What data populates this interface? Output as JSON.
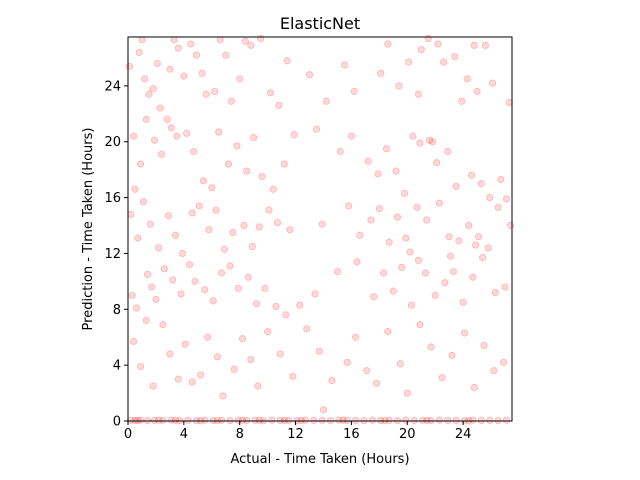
{
  "chart_data": {
    "type": "scatter",
    "title": "ElasticNet",
    "xlabel": "Actual - Time Taken (Hours)",
    "ylabel": "Prediction - Time Taken (Hours)",
    "xlim": [
      0,
      27.5
    ],
    "ylim": [
      0,
      27.5
    ],
    "xticks": [
      0,
      4,
      8,
      12,
      16,
      20,
      24
    ],
    "yticks": [
      0,
      4,
      8,
      12,
      16,
      20,
      24
    ],
    "grid": false,
    "legend": "none",
    "marker_color": "#ff0000",
    "marker_alpha": 0.15,
    "series": [
      {
        "points": [
          [
            0.1,
            25.4
          ],
          [
            0.5,
            16.6
          ],
          [
            0.8,
            26.4
          ],
          [
            1.0,
            27.3
          ],
          [
            1.2,
            24.5
          ],
          [
            1.5,
            23.4
          ],
          [
            1.8,
            23.8
          ],
          [
            2.1,
            25.6
          ],
          [
            2.3,
            22.4
          ],
          [
            2.8,
            21.6
          ],
          [
            3.0,
            25.2
          ],
          [
            3.3,
            27.3
          ],
          [
            3.6,
            26.7
          ],
          [
            4.0,
            24.7
          ],
          [
            4.5,
            27.0
          ],
          [
            4.9,
            26.2
          ],
          [
            5.3,
            24.9
          ],
          [
            5.6,
            23.4
          ],
          [
            6.2,
            23.6
          ],
          [
            6.6,
            27.3
          ],
          [
            7.0,
            26.2
          ],
          [
            7.4,
            22.9
          ],
          [
            8.0,
            24.5
          ],
          [
            8.4,
            27.2
          ],
          [
            8.8,
            26.9
          ],
          [
            9.5,
            27.4
          ],
          [
            10.2,
            23.5
          ],
          [
            10.8,
            22.6
          ],
          [
            11.4,
            25.8
          ],
          [
            13.0,
            24.8
          ],
          [
            14.2,
            22.9
          ],
          [
            15.5,
            25.5
          ],
          [
            16.2,
            23.6
          ],
          [
            18.1,
            24.9
          ],
          [
            19.4,
            24.0
          ],
          [
            20.1,
            25.7
          ],
          [
            21.0,
            26.6
          ],
          [
            21.5,
            27.4
          ],
          [
            22.6,
            25.7
          ],
          [
            23.4,
            26.1
          ],
          [
            23.9,
            22.9
          ],
          [
            24.3,
            24.5
          ],
          [
            25.0,
            23.6
          ],
          [
            25.6,
            26.9
          ],
          [
            26.1,
            24.2
          ],
          [
            27.3,
            22.8
          ],
          [
            22.2,
            27.0
          ],
          [
            24.8,
            26.9
          ],
          [
            20.8,
            23.4
          ],
          [
            18.6,
            27.0
          ],
          [
            0.4,
            20.4
          ],
          [
            0.9,
            18.4
          ],
          [
            1.3,
            21.6
          ],
          [
            1.9,
            20.1
          ],
          [
            2.4,
            19.1
          ],
          [
            3.1,
            21.0
          ],
          [
            3.5,
            20.4
          ],
          [
            4.2,
            20.6
          ],
          [
            4.7,
            19.3
          ],
          [
            5.4,
            17.2
          ],
          [
            6.0,
            16.7
          ],
          [
            6.5,
            20.7
          ],
          [
            7.2,
            18.4
          ],
          [
            7.8,
            19.7
          ],
          [
            8.5,
            17.9
          ],
          [
            9.0,
            20.3
          ],
          [
            9.6,
            17.5
          ],
          [
            10.4,
            16.6
          ],
          [
            11.2,
            18.4
          ],
          [
            11.9,
            20.5
          ],
          [
            13.5,
            20.9
          ],
          [
            15.2,
            19.3
          ],
          [
            16.0,
            20.4
          ],
          [
            17.2,
            18.6
          ],
          [
            17.9,
            17.7
          ],
          [
            18.5,
            19.5
          ],
          [
            19.2,
            17.9
          ],
          [
            19.8,
            16.3
          ],
          [
            20.4,
            20.4
          ],
          [
            20.9,
            19.9
          ],
          [
            21.6,
            20.1
          ],
          [
            22.1,
            18.5
          ],
          [
            22.9,
            19.3
          ],
          [
            23.5,
            16.8
          ],
          [
            24.6,
            17.6
          ],
          [
            25.3,
            17.0
          ],
          [
            25.9,
            16.0
          ],
          [
            26.7,
            17.3
          ],
          [
            27.1,
            15.9
          ],
          [
            21.8,
            20.0
          ],
          [
            0.2,
            14.8
          ],
          [
            0.7,
            13.1
          ],
          [
            1.1,
            15.7
          ],
          [
            1.6,
            14.1
          ],
          [
            2.2,
            12.4
          ],
          [
            2.9,
            14.7
          ],
          [
            3.4,
            13.3
          ],
          [
            3.9,
            12.0
          ],
          [
            4.6,
            14.9
          ],
          [
            5.1,
            15.4
          ],
          [
            5.8,
            13.7
          ],
          [
            6.3,
            15.1
          ],
          [
            6.9,
            12.3
          ],
          [
            7.5,
            13.5
          ],
          [
            8.3,
            14.0
          ],
          [
            8.9,
            12.5
          ],
          [
            9.4,
            13.9
          ],
          [
            10.1,
            15.1
          ],
          [
            10.7,
            14.2
          ],
          [
            11.6,
            13.7
          ],
          [
            13.9,
            14.1
          ],
          [
            15.8,
            15.4
          ],
          [
            16.6,
            13.3
          ],
          [
            17.4,
            14.4
          ],
          [
            18.0,
            15.2
          ],
          [
            18.7,
            12.8
          ],
          [
            19.3,
            14.6
          ],
          [
            19.9,
            13.1
          ],
          [
            20.7,
            15.3
          ],
          [
            21.4,
            14.4
          ],
          [
            22.3,
            15.6
          ],
          [
            23.0,
            13.2
          ],
          [
            23.7,
            12.9
          ],
          [
            24.4,
            14.0
          ],
          [
            25.1,
            13.2
          ],
          [
            25.8,
            12.4
          ],
          [
            26.5,
            15.3
          ],
          [
            27.4,
            14.0
          ],
          [
            24.9,
            12.6
          ],
          [
            20.2,
            12.1
          ],
          [
            0.3,
            9.0
          ],
          [
            0.6,
            8.1
          ],
          [
            1.4,
            10.5
          ],
          [
            1.7,
            9.6
          ],
          [
            2.0,
            8.7
          ],
          [
            2.6,
            10.9
          ],
          [
            3.2,
            10.1
          ],
          [
            3.8,
            9.1
          ],
          [
            4.4,
            11.2
          ],
          [
            4.8,
            10.0
          ],
          [
            5.5,
            9.4
          ],
          [
            6.1,
            8.6
          ],
          [
            6.7,
            10.6
          ],
          [
            7.3,
            11.1
          ],
          [
            7.9,
            9.5
          ],
          [
            8.6,
            10.3
          ],
          [
            9.2,
            8.4
          ],
          [
            9.8,
            9.5
          ],
          [
            10.6,
            8.2
          ],
          [
            11.3,
            7.6
          ],
          [
            12.3,
            8.3
          ],
          [
            13.4,
            9.1
          ],
          [
            15.0,
            10.7
          ],
          [
            16.4,
            11.4
          ],
          [
            17.6,
            8.9
          ],
          [
            18.3,
            10.6
          ],
          [
            19.0,
            9.3
          ],
          [
            19.6,
            11.0
          ],
          [
            20.3,
            8.3
          ],
          [
            20.8,
            11.5
          ],
          [
            21.3,
            10.6
          ],
          [
            22.0,
            9.0
          ],
          [
            22.7,
            9.9
          ],
          [
            23.3,
            10.7
          ],
          [
            24.0,
            8.5
          ],
          [
            24.7,
            10.3
          ],
          [
            25.4,
            11.7
          ],
          [
            26.3,
            9.2
          ],
          [
            27.0,
            9.6
          ],
          [
            23.1,
            11.8
          ],
          [
            0.4,
            5.7
          ],
          [
            0.9,
            3.9
          ],
          [
            1.3,
            7.2
          ],
          [
            1.8,
            2.5
          ],
          [
            2.5,
            6.9
          ],
          [
            3.0,
            4.8
          ],
          [
            3.6,
            3.0
          ],
          [
            4.1,
            5.5
          ],
          [
            4.6,
            2.8
          ],
          [
            5.2,
            3.3
          ],
          [
            5.7,
            6.0
          ],
          [
            6.4,
            4.6
          ],
          [
            6.8,
            1.8
          ],
          [
            7.6,
            3.7
          ],
          [
            8.2,
            5.9
          ],
          [
            8.8,
            4.4
          ],
          [
            9.3,
            2.5
          ],
          [
            10.0,
            6.4
          ],
          [
            10.9,
            4.8
          ],
          [
            11.8,
            3.2
          ],
          [
            12.8,
            6.6
          ],
          [
            13.7,
            5.0
          ],
          [
            14.6,
            2.9
          ],
          [
            15.7,
            4.2
          ],
          [
            16.3,
            6.0
          ],
          [
            17.1,
            3.6
          ],
          [
            17.8,
            2.7
          ],
          [
            18.6,
            6.4
          ],
          [
            19.5,
            4.1
          ],
          [
            20.0,
            2.0
          ],
          [
            20.9,
            6.9
          ],
          [
            21.7,
            5.3
          ],
          [
            22.5,
            3.1
          ],
          [
            23.2,
            4.7
          ],
          [
            24.1,
            6.3
          ],
          [
            24.8,
            2.4
          ],
          [
            25.5,
            5.4
          ],
          [
            26.2,
            3.6
          ],
          [
            26.9,
            4.2
          ],
          [
            14.0,
            0.8
          ],
          [
            0.2,
            0.05
          ],
          [
            0.5,
            0.03
          ],
          [
            0.9,
            0.06
          ],
          [
            1.4,
            0.02
          ],
          [
            1.9,
            0.05
          ],
          [
            2.5,
            0.04
          ],
          [
            3.1,
            0.06
          ],
          [
            3.7,
            0.03
          ],
          [
            4.3,
            0.05
          ],
          [
            4.9,
            0.02
          ],
          [
            5.5,
            0.06
          ],
          [
            6.1,
            0.04
          ],
          [
            6.7,
            0.05
          ],
          [
            7.3,
            0.03
          ],
          [
            7.9,
            0.06
          ],
          [
            8.5,
            0.04
          ],
          [
            9.1,
            0.05
          ],
          [
            9.7,
            0.02
          ],
          [
            10.3,
            0.06
          ],
          [
            10.9,
            0.04
          ],
          [
            11.5,
            0.05
          ],
          [
            12.1,
            0.03
          ],
          [
            12.7,
            0.06
          ],
          [
            13.3,
            0.04
          ],
          [
            13.9,
            0.05
          ],
          [
            14.5,
            0.02
          ],
          [
            15.1,
            0.06
          ],
          [
            15.7,
            0.04
          ],
          [
            16.3,
            0.05
          ],
          [
            16.9,
            0.03
          ],
          [
            17.5,
            0.06
          ],
          [
            18.1,
            0.04
          ],
          [
            18.7,
            0.05
          ],
          [
            19.3,
            0.02
          ],
          [
            19.9,
            0.06
          ],
          [
            20.5,
            0.04
          ],
          [
            21.1,
            0.05
          ],
          [
            21.7,
            0.03
          ],
          [
            22.3,
            0.06
          ],
          [
            22.9,
            0.04
          ],
          [
            23.5,
            0.05
          ],
          [
            24.1,
            0.02
          ],
          [
            24.7,
            0.06
          ],
          [
            25.3,
            0.04
          ],
          [
            25.9,
            0.05
          ],
          [
            26.5,
            0.03
          ],
          [
            27.1,
            0.06
          ],
          [
            0.7,
            0.04
          ],
          [
            3.4,
            0.05
          ],
          [
            6.4,
            0.03
          ],
          [
            9.4,
            0.05
          ],
          [
            12.4,
            0.04
          ],
          [
            15.4,
            0.06
          ],
          [
            18.4,
            0.03
          ],
          [
            21.4,
            0.05
          ],
          [
            24.4,
            0.04
          ],
          [
            2.2,
            0.06
          ],
          [
            5.2,
            0.02
          ],
          [
            8.2,
            0.05
          ],
          [
            11.2,
            0.04
          ]
        ]
      }
    ]
  }
}
